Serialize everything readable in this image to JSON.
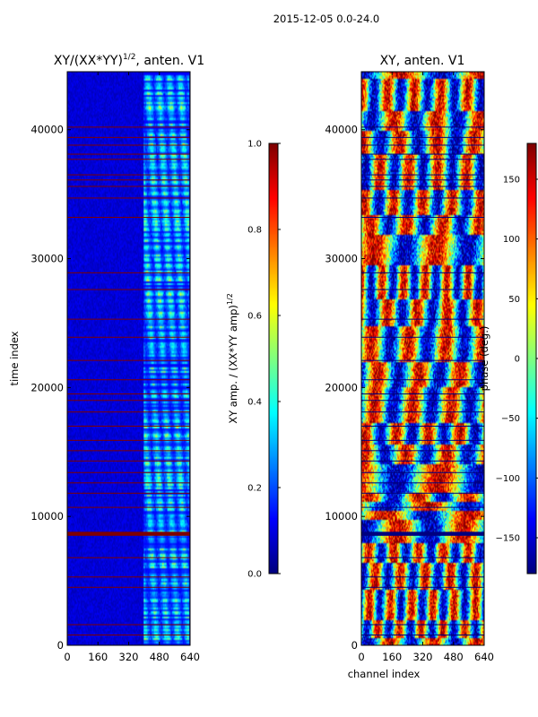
{
  "figure": {
    "suptitle": "2015-12-05 0.0-24.0"
  },
  "colors": {
    "jet": [
      "#00007f",
      "#0000ff",
      "#007fff",
      "#00ffff",
      "#7fff7f",
      "#ffff00",
      "#ff7f00",
      "#ff0000",
      "#7f0000"
    ],
    "axis": "#000000"
  },
  "chart_data": [
    {
      "type": "heatmap",
      "title": "XY/(XX*YY)",
      "title_exp": "1/2",
      "title_suffix": ", anten. V1",
      "xlabel": "",
      "ylabel": "time index",
      "xlim": [
        0,
        640
      ],
      "ylim": [
        0,
        44500
      ],
      "xticks": [
        0,
        160,
        320,
        480,
        640
      ],
      "yticks": [
        0,
        10000,
        20000,
        30000,
        40000
      ],
      "xtick_labels": [
        "0",
        "160",
        "320",
        "480",
        "640"
      ],
      "ytick_labels": [
        "0",
        "10000",
        "20000",
        "30000",
        "40000"
      ],
      "bright_channel_range": [
        400,
        640
      ],
      "flagged_rows": [
        800,
        1600,
        4500,
        5300,
        6800,
        8600,
        8700,
        10700,
        11800,
        12600,
        13400,
        14300,
        15100,
        15900,
        17000,
        18100,
        19000,
        19500,
        20600,
        22100,
        23900,
        25300,
        27600,
        28900,
        33200,
        34700,
        35600,
        36100,
        36500,
        37700,
        38100,
        38800,
        39400,
        40200
      ],
      "colorbar": {
        "label": "XY amp. / (XX*YY amp)",
        "label_exp": "1/2",
        "range": [
          0.0,
          1.0
        ],
        "ticks": [
          0.0,
          0.2,
          0.4,
          0.6,
          0.8,
          1.0
        ],
        "tick_labels": [
          "0.0",
          "0.2",
          "0.4",
          "0.6",
          "0.8",
          "1.0"
        ]
      }
    },
    {
      "type": "heatmap",
      "title": "XY, anten. V1",
      "xlabel": "channel index",
      "ylabel": "",
      "xlim": [
        0,
        640
      ],
      "ylim": [
        0,
        44500
      ],
      "xticks": [
        0,
        160,
        320,
        480,
        640
      ],
      "yticks": [
        0,
        10000,
        20000,
        30000,
        40000
      ],
      "xtick_labels": [
        "0",
        "160",
        "320",
        "480",
        "640"
      ],
      "ytick_labels": [
        "0",
        "10000",
        "20000",
        "30000",
        "40000"
      ],
      "flagged_rows": [
        800,
        1600,
        4500,
        5300,
        6800,
        8600,
        8700,
        10700,
        11800,
        12600,
        13400,
        14300,
        15100,
        15900,
        17000,
        18100,
        19000,
        19500,
        20600,
        22100,
        23900,
        25300,
        27600,
        28900,
        33200,
        34700,
        35600,
        36100,
        36500,
        37700,
        38100,
        38800,
        39400,
        40200
      ],
      "colorbar": {
        "label": "phase (deg.)",
        "range": [
          -180,
          180
        ],
        "ticks": [
          -150,
          -100,
          -50,
          0,
          50,
          100,
          150
        ],
        "tick_labels": [
          "−150",
          "−100",
          "−50",
          "0",
          "50",
          "100",
          "150"
        ]
      }
    }
  ]
}
